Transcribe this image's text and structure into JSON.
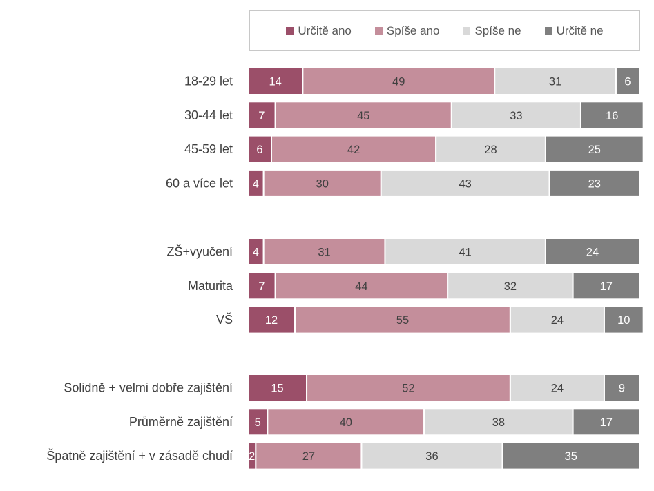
{
  "chart_data": {
    "type": "bar",
    "orientation": "horizontal",
    "stacked": true,
    "normalized": "percent",
    "title": "",
    "xlabel": "",
    "ylabel": "",
    "xlim": [
      0,
      100
    ],
    "grid": false,
    "legend_position": "top",
    "groups": [
      [
        "18-29 let",
        "30-44 let",
        "45-59 let",
        "60 a více let"
      ],
      [
        "ZŠ+vyučení",
        "Maturita",
        "VŠ"
      ],
      [
        "Solidně + velmi dobře zajištění",
        "Průměrně zajištění",
        "Špatně zajištění + v zásadě chudí"
      ]
    ],
    "categories": [
      "18-29 let",
      "30-44 let",
      "45-59 let",
      "60 a více let",
      "ZŠ+vyučení",
      "Maturita",
      "VŠ",
      "Solidně + velmi dobře zajištění",
      "Průměrně zajištění",
      "Špatně zajištění + v zásadě chudí"
    ],
    "series": [
      {
        "name": "Určitě ano",
        "color": "#9b4f69",
        "label_color": "#ffffff",
        "values": [
          14,
          7,
          6,
          4,
          4,
          7,
          12,
          15,
          5,
          2
        ]
      },
      {
        "name": "Spíše ano",
        "color": "#c48e9b",
        "label_color": "#404040",
        "values": [
          49,
          45,
          42,
          30,
          31,
          44,
          55,
          52,
          40,
          27
        ]
      },
      {
        "name": "Spíše ne",
        "color": "#d9d9d9",
        "label_color": "#404040",
        "values": [
          31,
          33,
          28,
          43,
          41,
          32,
          24,
          24,
          38,
          36
        ]
      },
      {
        "name": "Určitě ne",
        "color": "#7f7f7f",
        "label_color": "#ffffff",
        "values": [
          6,
          16,
          25,
          23,
          24,
          17,
          10,
          9,
          17,
          35
        ]
      }
    ]
  }
}
